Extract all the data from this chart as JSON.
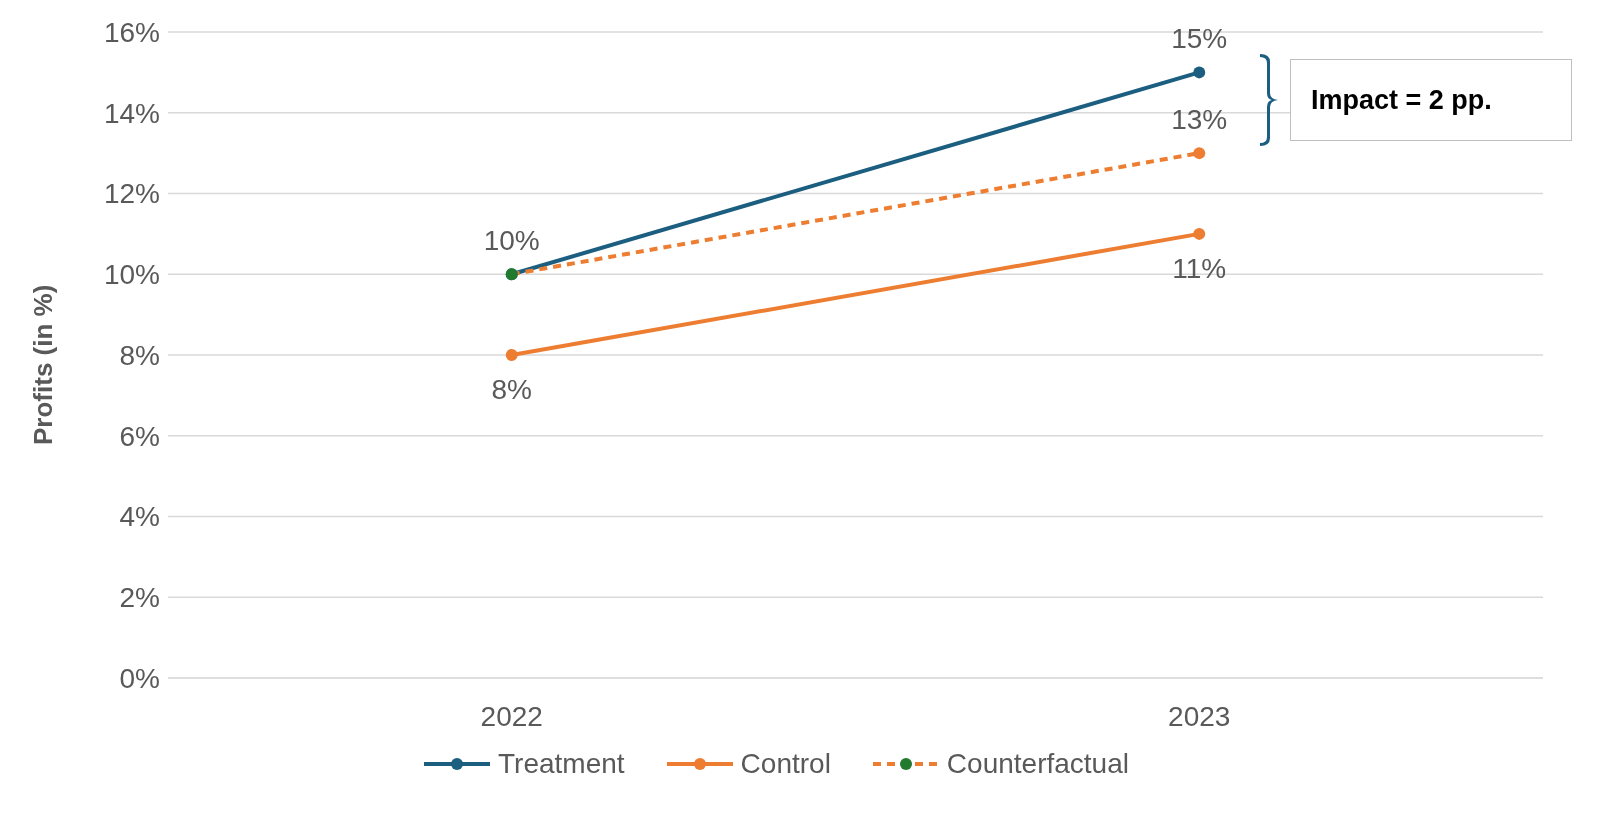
{
  "chart_data": {
    "type": "line",
    "ylabel": "Profits (in %)",
    "categories": [
      "2022",
      "2023"
    ],
    "series": [
      {
        "name": "Treatment",
        "color": "#1b5e80",
        "values": [
          10,
          15
        ],
        "value_labels": [
          "10%",
          "15%"
        ]
      },
      {
        "name": "Control",
        "color": "#ed7d31",
        "values": [
          8,
          11
        ],
        "value_labels": [
          "8%",
          "11%"
        ]
      },
      {
        "name": "Counterfactual",
        "color": "#ed7d31",
        "colors": [
          "#217a2e",
          "#ed7d31"
        ],
        "line_style": "dashed",
        "values": [
          10,
          13
        ],
        "value_labels": [
          null,
          "13%"
        ]
      }
    ],
    "ylim": [
      0,
      16
    ],
    "yticks": [
      {
        "value": 0,
        "label": "0%"
      },
      {
        "value": 2,
        "label": "2%"
      },
      {
        "value": 4,
        "label": "4%"
      },
      {
        "value": 6,
        "label": "6%"
      },
      {
        "value": 8,
        "label": "8%"
      },
      {
        "value": 10,
        "label": "10%"
      },
      {
        "value": 12,
        "label": "12%"
      },
      {
        "value": 14,
        "label": "14%"
      },
      {
        "value": 16,
        "label": "16%"
      }
    ],
    "annotations": [
      "Impact = 2 pp."
    ],
    "grid": "y",
    "legend": "bottom",
    "marker": "circle",
    "line_style": "solid"
  }
}
